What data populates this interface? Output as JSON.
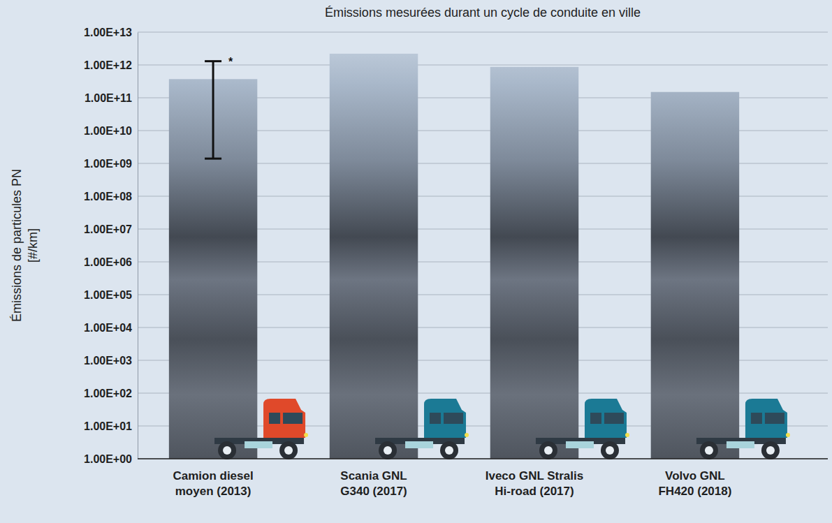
{
  "chart_data": {
    "type": "bar",
    "title": "Émissions mesurées durant un cycle de conduite en ville",
    "y_label": "Émissions de particules PN [#/km]",
    "categories": [
      "Camion diesel moyen  (2013)",
      "Scania GNL G340 (2017)",
      "Iveco GNL Stralis Hi-road (2017)",
      "Volvo GNL FH420 (2018)"
    ],
    "values": [
      370000000000,
      2200000000000,
      870000000000,
      150000000000
    ],
    "error_low": [
      1400000000,
      null,
      null,
      null
    ],
    "error_high": [
      1300000000000,
      null,
      null,
      null
    ],
    "annotation": "*",
    "colors": [
      "#e0492a",
      "#1b7a95",
      "#1b7a95",
      "#1b7a95"
    ],
    "log": "y",
    "grid": true,
    "ylim": [
      1,
      10000000000000.0
    ],
    "yticks": [
      {
        "value": 1,
        "label": "1.00E+00"
      },
      {
        "value": 10,
        "label": "1.00E+01"
      },
      {
        "value": 100,
        "label": "1.00E+02"
      },
      {
        "value": 1000,
        "label": "1.00E+03"
      },
      {
        "value": 10000,
        "label": "1.00E+04"
      },
      {
        "value": 100000,
        "label": "1.00E+05"
      },
      {
        "value": 1000000,
        "label": "1.00E+06"
      },
      {
        "value": 10000000,
        "label": "1.00E+07"
      },
      {
        "value": 100000000,
        "label": "1.00E+08"
      },
      {
        "value": 1000000000,
        "label": "1.00E+09"
      },
      {
        "value": 10000000000,
        "label": "1.00E+10"
      },
      {
        "value": 100000000000,
        "label": "1.00E+11"
      },
      {
        "value": 1000000000000,
        "label": "1.00E+12"
      },
      {
        "value": 10000000000000.0,
        "label": "1.00E+13"
      }
    ]
  }
}
